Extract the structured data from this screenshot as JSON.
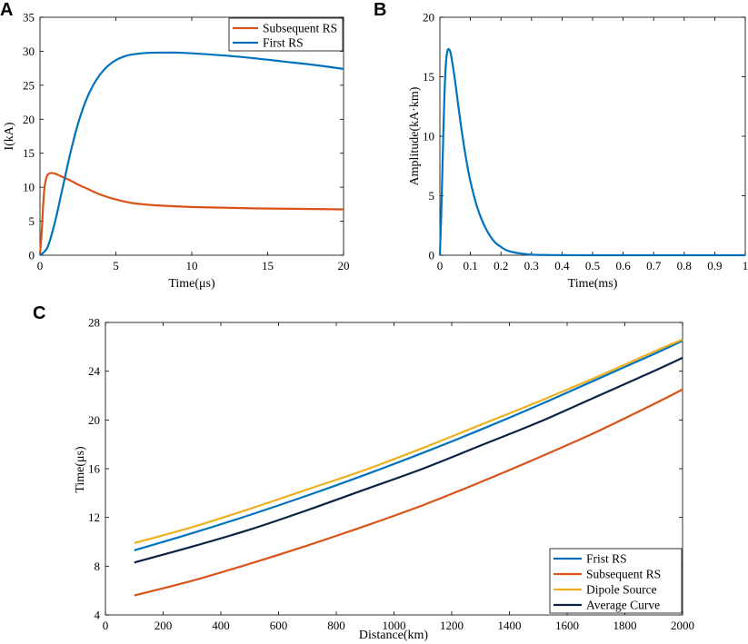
{
  "colors": {
    "blue": "#0072BD",
    "orange": "#D95319",
    "yellow": "#EDB120",
    "navy": "#0B2244"
  },
  "chart_data": [
    {
      "panel": "A",
      "type": "line",
      "xlabel": "Time(μs)",
      "ylabel": "I(kA)",
      "xlim": [
        0,
        20
      ],
      "ylim": [
        0,
        35
      ],
      "xticks": [
        0,
        5,
        10,
        15,
        20
      ],
      "yticks": [
        0,
        5,
        10,
        15,
        20,
        25,
        30,
        35
      ],
      "legend": "top-right",
      "series": [
        {
          "name": "Subsequent RS",
          "color": "#D95319",
          "x": [
            0,
            0.1,
            0.2,
            0.3,
            0.45,
            0.6,
            0.8,
            1.0,
            1.3,
            1.6,
            2,
            2.5,
            3,
            4,
            5,
            6,
            7,
            8,
            10,
            12,
            14,
            16,
            18,
            20
          ],
          "y": [
            0,
            3.0,
            7.0,
            10.0,
            11.6,
            12.0,
            12.1,
            12.0,
            11.7,
            11.4,
            11.0,
            10.4,
            9.9,
            8.9,
            8.2,
            7.7,
            7.45,
            7.3,
            7.1,
            7.0,
            6.9,
            6.85,
            6.8,
            6.75
          ]
        },
        {
          "name": "First RS",
          "color": "#0072BD",
          "x": [
            0,
            0.5,
            1,
            1.5,
            2,
            2.5,
            3,
            3.5,
            4,
            4.5,
            5,
            5.5,
            6,
            7,
            8,
            9,
            10,
            12,
            14,
            16,
            18,
            20
          ],
          "y": [
            0,
            1.2,
            5.0,
            10.0,
            15.0,
            19.3,
            22.6,
            25.0,
            26.7,
            27.9,
            28.7,
            29.2,
            29.5,
            29.75,
            29.8,
            29.8,
            29.7,
            29.4,
            29.0,
            28.5,
            28.0,
            27.4
          ]
        }
      ]
    },
    {
      "panel": "B",
      "type": "line",
      "xlabel": "Time(ms)",
      "ylabel": "Amplitude(kA·km)",
      "xlim": [
        0,
        1
      ],
      "ylim": [
        0,
        20
      ],
      "xticks": [
        0,
        0.1,
        0.2,
        0.3,
        0.4,
        0.5,
        0.6,
        0.7,
        0.8,
        0.9,
        1
      ],
      "yticks": [
        0,
        5,
        10,
        15,
        20
      ],
      "series": [
        {
          "name": "Amplitude",
          "color": "#0072BD",
          "x": [
            0,
            0.005,
            0.01,
            0.015,
            0.02,
            0.025,
            0.03,
            0.035,
            0.04,
            0.05,
            0.06,
            0.07,
            0.08,
            0.09,
            0.1,
            0.12,
            0.14,
            0.16,
            0.18,
            0.2,
            0.22,
            0.25,
            0.28,
            0.3,
            0.35,
            0.4,
            0.5,
            0.6,
            0.8,
            1.0
          ],
          "y": [
            0,
            4.0,
            9.0,
            13.5,
            16.2,
            17.2,
            17.3,
            17.0,
            16.3,
            14.6,
            12.6,
            10.7,
            9.0,
            7.5,
            6.2,
            4.2,
            2.8,
            1.8,
            1.1,
            0.7,
            0.4,
            0.2,
            0.1,
            0.05,
            0.02,
            0.01,
            0,
            0,
            0,
            0
          ]
        }
      ]
    },
    {
      "panel": "C",
      "type": "line",
      "xlabel": "Distance(km)",
      "ylabel": "Time(μs)",
      "xlim": [
        0,
        2000
      ],
      "ylim": [
        4,
        28
      ],
      "xticks": [
        0,
        200,
        400,
        600,
        800,
        1000,
        1200,
        1400,
        1600,
        1800,
        2000
      ],
      "yticks": [
        4,
        8,
        12,
        16,
        20,
        24,
        28
      ],
      "legend": "bottom-right",
      "series": [
        {
          "name": "Frist RS",
          "color": "#0072BD",
          "x": [
            100,
            300,
            500,
            700,
            900,
            1100,
            1300,
            1500,
            1700,
            1900,
            2000
          ],
          "y": [
            9.3,
            10.7,
            12.2,
            13.8,
            15.5,
            17.3,
            19.2,
            21.2,
            23.3,
            25.4,
            26.5
          ]
        },
        {
          "name": "Subsequent RS",
          "color": "#D95319",
          "x": [
            100,
            300,
            500,
            700,
            900,
            1100,
            1300,
            1500,
            1700,
            1900,
            2000
          ],
          "y": [
            5.6,
            6.8,
            8.2,
            9.7,
            11.3,
            13.0,
            14.9,
            16.9,
            19.0,
            21.3,
            22.5
          ]
        },
        {
          "name": "Dipole Source",
          "color": "#EDB120",
          "x": [
            100,
            300,
            500,
            700,
            900,
            1100,
            1300,
            1500,
            1700,
            1900,
            2000
          ],
          "y": [
            9.9,
            11.2,
            12.7,
            14.3,
            15.9,
            17.7,
            19.6,
            21.5,
            23.5,
            25.6,
            26.6
          ]
        },
        {
          "name": "Average Curve",
          "color": "#0B2244",
          "x": [
            100,
            300,
            500,
            700,
            900,
            1100,
            1300,
            1500,
            1700,
            1900,
            2000
          ],
          "y": [
            8.3,
            9.6,
            11.0,
            12.6,
            14.3,
            16.0,
            17.9,
            19.8,
            21.9,
            24.0,
            25.1
          ]
        }
      ]
    }
  ]
}
